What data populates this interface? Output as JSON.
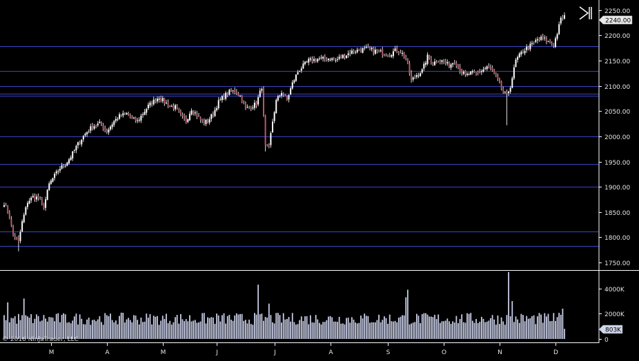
{
  "copyright": "© 2016 NinjaTrader, LLC",
  "colors": {
    "background": "#000000",
    "axis": "#ffffff",
    "tick_text": "#e6e6e6",
    "level_line": "#3b44c8",
    "up_candle": "#ffffff",
    "down_candle": "#b85a66",
    "wick": "#e0e0e0",
    "volume_bar": "#c8cde6",
    "price_flag_bg": "#e8e8e8",
    "volume_flag_bg": "#cfd6ea"
  },
  "icons": {
    "nav_end": "skip-to-end-icon"
  },
  "chart_data": [
    {
      "type": "candlestick",
      "panel": "price",
      "y_ticks": [
        {
          "value": 1750,
          "label": "1750.00"
        },
        {
          "value": 1800,
          "label": "1800.00"
        },
        {
          "value": 1850,
          "label": "1850.00"
        },
        {
          "value": 1900,
          "label": "1900.00"
        },
        {
          "value": 1950,
          "label": "1950.00"
        },
        {
          "value": 2000,
          "label": "2000.00"
        },
        {
          "value": 2050,
          "label": "2050.00"
        },
        {
          "value": 2100,
          "label": "2100.00"
        },
        {
          "value": 2150,
          "label": "2150.00"
        },
        {
          "value": 2200,
          "label": "2200.00"
        },
        {
          "value": 2250,
          "label": "2250.00"
        }
      ],
      "ylim": [
        1735,
        2262
      ],
      "current_price": {
        "value": 2240,
        "label": "2240.00"
      },
      "horizontal_levels": [
        2179,
        2130,
        2100,
        2085,
        2080,
        2000,
        1945,
        1900,
        1812,
        1783
      ],
      "anchors": [
        [
          0,
          1868
        ],
        [
          3,
          1840
        ],
        [
          5,
          1805
        ],
        [
          8,
          1790
        ],
        [
          10,
          1830
        ],
        [
          13,
          1870
        ],
        [
          16,
          1880
        ],
        [
          19,
          1878
        ],
        [
          22,
          1860
        ],
        [
          25,
          1905
        ],
        [
          28,
          1922
        ],
        [
          31,
          1937
        ],
        [
          34,
          1945
        ],
        [
          37,
          1960
        ],
        [
          41,
          1985
        ],
        [
          45,
          2005
        ],
        [
          49,
          2020
        ],
        [
          53,
          2025
        ],
        [
          57,
          2010
        ],
        [
          61,
          2030
        ],
        [
          64,
          2040
        ],
        [
          68,
          2045
        ],
        [
          71,
          2035
        ],
        [
          74,
          2030
        ],
        [
          77,
          2045
        ],
        [
          80,
          2060
        ],
        [
          83,
          2070
        ],
        [
          86,
          2078
        ],
        [
          89,
          2068
        ],
        [
          92,
          2060
        ],
        [
          95,
          2058
        ],
        [
          98,
          2040
        ],
        [
          101,
          2030
        ],
        [
          104,
          2055
        ],
        [
          107,
          2042
        ],
        [
          110,
          2028
        ],
        [
          113,
          2030
        ],
        [
          116,
          2045
        ],
        [
          119,
          2068
        ],
        [
          122,
          2080
        ],
        [
          125,
          2088
        ],
        [
          128,
          2090
        ],
        [
          131,
          2080
        ],
        [
          134,
          2055
        ],
        [
          137,
          2058
        ],
        [
          140,
          2065
        ],
        [
          143,
          2098
        ],
        [
          145,
          1980
        ],
        [
          147,
          1978
        ],
        [
          149,
          2030
        ],
        [
          151,
          2070
        ],
        [
          154,
          2088
        ],
        [
          157,
          2072
        ],
        [
          160,
          2105
        ],
        [
          163,
          2128
        ],
        [
          166,
          2140
        ],
        [
          169,
          2150
        ],
        [
          172,
          2152
        ],
        [
          175,
          2154
        ],
        [
          178,
          2153
        ],
        [
          181,
          2155
        ],
        [
          184,
          2150
        ],
        [
          187,
          2158
        ],
        [
          190,
          2162
        ],
        [
          193,
          2168
        ],
        [
          196,
          2170
        ],
        [
          199,
          2172
        ],
        [
          202,
          2174
        ],
        [
          205,
          2170
        ],
        [
          208,
          2168
        ],
        [
          211,
          2164
        ],
        [
          214,
          2163
        ],
        [
          217,
          2170
        ],
        [
          220,
          2168
        ],
        [
          223,
          2155
        ],
        [
          226,
          2110
        ],
        [
          229,
          2122
        ],
        [
          232,
          2130
        ],
        [
          235,
          2158
        ],
        [
          238,
          2145
        ],
        [
          241,
          2152
        ],
        [
          244,
          2148
        ],
        [
          247,
          2140
        ],
        [
          250,
          2150
        ],
        [
          253,
          2132
        ],
        [
          256,
          2120
        ],
        [
          259,
          2125
        ],
        [
          262,
          2124
        ],
        [
          265,
          2130
        ],
        [
          268,
          2138
        ],
        [
          271,
          2130
        ],
        [
          274,
          2110
        ],
        [
          277,
          2088
        ],
        [
          279,
          2080
        ],
        [
          281,
          2100
        ],
        [
          284,
          2150
        ],
        [
          287,
          2165
        ],
        [
          290,
          2175
        ],
        [
          293,
          2182
        ],
        [
          296,
          2192
        ],
        [
          299,
          2195
        ],
        [
          302,
          2187
        ],
        [
          305,
          2182
        ],
        [
          307,
          2205
        ],
        [
          309,
          2232
        ],
        [
          311,
          2240
        ]
      ]
    },
    {
      "type": "bar",
      "panel": "volume",
      "y_ticks": [
        {
          "value": 0,
          "label": "0"
        },
        {
          "value": 2000000,
          "label": "2000K"
        },
        {
          "value": 4000000,
          "label": "4000K"
        }
      ],
      "ylim": [
        0,
        5400000
      ],
      "current_volume": {
        "value": 803000,
        "label": "803K"
      },
      "bar_count": 312,
      "base_volume": 1600000,
      "spikes": [
        {
          "index": 2,
          "value": 2900000
        },
        {
          "index": 11,
          "value": 3200000
        },
        {
          "index": 141,
          "value": 4300000
        },
        {
          "index": 147,
          "value": 2800000
        },
        {
          "index": 223,
          "value": 3300000
        },
        {
          "index": 224,
          "value": 3900000
        },
        {
          "index": 280,
          "value": 5300000
        },
        {
          "index": 282,
          "value": 3000000
        },
        {
          "index": 310,
          "value": 2400000
        },
        {
          "index": 311,
          "value": 803000
        }
      ]
    }
  ],
  "x_axis": {
    "months": [
      {
        "label": "M",
        "index": 26
      },
      {
        "label": "A",
        "index": 57
      },
      {
        "label": "M",
        "index": 88
      },
      {
        "label": "J",
        "index": 118
      },
      {
        "label": "J",
        "index": 150
      },
      {
        "label": "A",
        "index": 181
      },
      {
        "label": "S",
        "index": 213
      },
      {
        "label": "O",
        "index": 244
      },
      {
        "label": "N",
        "index": 275
      },
      {
        "label": "D",
        "index": 306
      }
    ]
  }
}
